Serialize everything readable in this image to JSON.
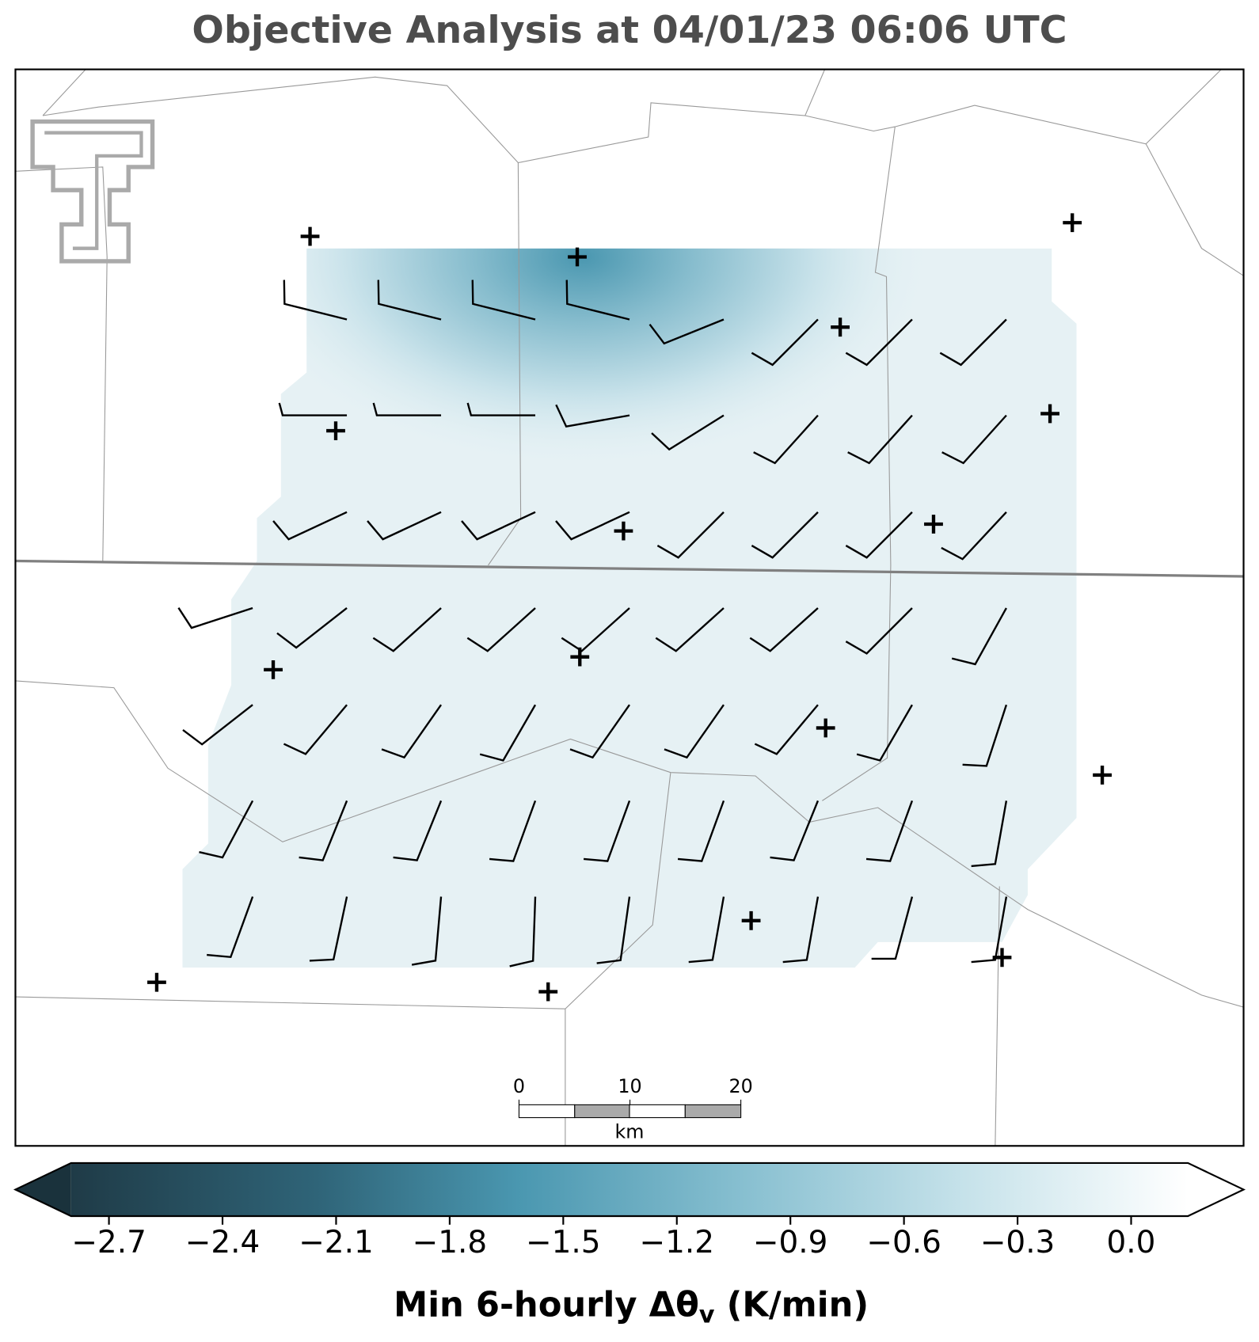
{
  "title": "Objective Analysis at 04/01/23 06:06 UTC",
  "colorbar": {
    "range": [
      -2.8,
      0.15
    ],
    "ticks": [
      {
        "value": -2.7,
        "label": "−2.7"
      },
      {
        "value": -2.4,
        "label": "−2.4"
      },
      {
        "value": -2.1,
        "label": "−2.1"
      },
      {
        "value": -1.8,
        "label": "−1.8"
      },
      {
        "value": -1.5,
        "label": "−1.5"
      },
      {
        "value": -1.2,
        "label": "−1.2"
      },
      {
        "value": -0.9,
        "label": "−0.9"
      },
      {
        "value": -0.6,
        "label": "−0.6"
      },
      {
        "value": -0.3,
        "label": "−0.3"
      },
      {
        "value": 0.0,
        "label": "0.0"
      }
    ],
    "label_main": "Min 6-hourly Δθ",
    "label_sub": "v",
    "label_unit": " (K/min)"
  },
  "scale_bar": {
    "ticks": [
      0,
      10,
      20
    ],
    "unit": "km"
  }
}
